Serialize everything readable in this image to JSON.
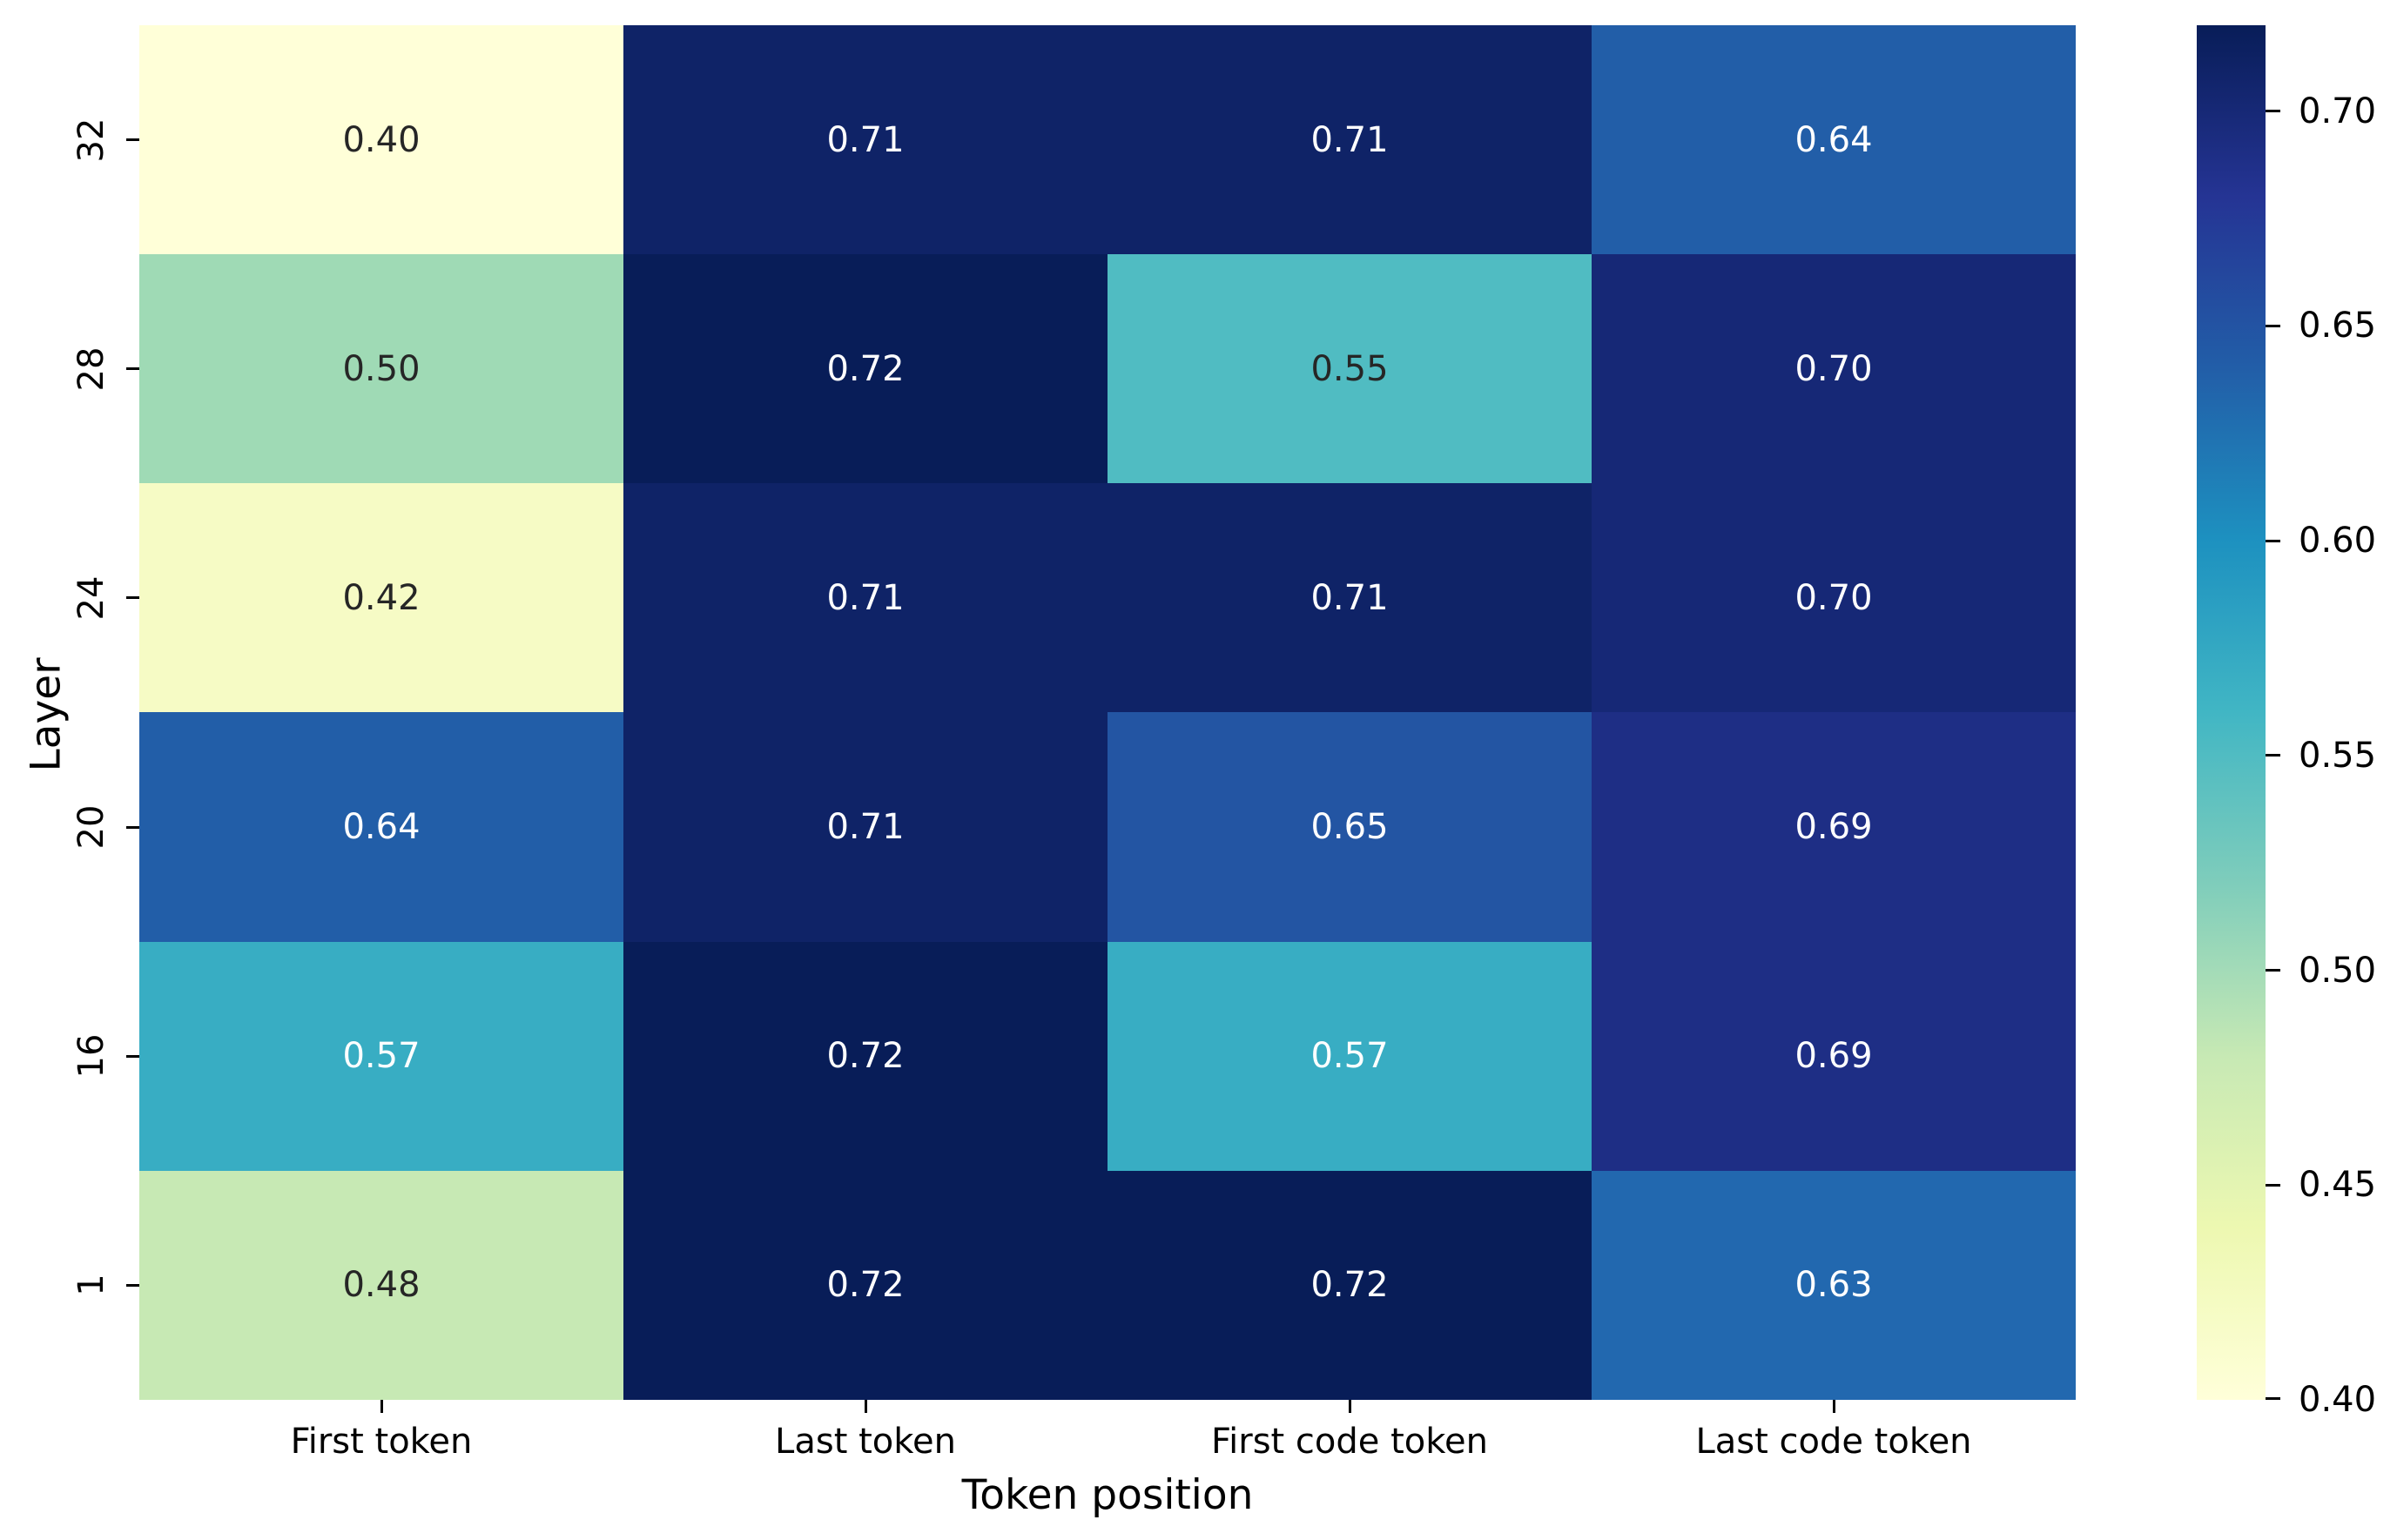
{
  "chart_data": {
    "type": "heatmap",
    "title": "",
    "xlabel": "Token position",
    "ylabel": "Layer",
    "columns": [
      "First token",
      "Last token",
      "First code token",
      "Last code token"
    ],
    "rows": [
      "32",
      "28",
      "24",
      "20",
      "16",
      "1"
    ],
    "values": [
      [
        0.4,
        0.71,
        0.71,
        0.64
      ],
      [
        0.5,
        0.72,
        0.55,
        0.7
      ],
      [
        0.42,
        0.71,
        0.71,
        0.7
      ],
      [
        0.64,
        0.71,
        0.65,
        0.69
      ],
      [
        0.57,
        0.72,
        0.57,
        0.69
      ],
      [
        0.48,
        0.72,
        0.72,
        0.63
      ]
    ],
    "value_labels": [
      [
        "0.40",
        "0.71",
        "0.71",
        "0.64"
      ],
      [
        "0.50",
        "0.72",
        "0.55",
        "0.70"
      ],
      [
        "0.42",
        "0.71",
        "0.71",
        "0.70"
      ],
      [
        "0.64",
        "0.71",
        "0.65",
        "0.69"
      ],
      [
        "0.57",
        "0.72",
        "0.57",
        "0.69"
      ],
      [
        "0.48",
        "0.72",
        "0.72",
        "0.63"
      ]
    ],
    "cell_colors": [
      [
        "#ffffd8",
        "#0f2367",
        "#0f2367",
        "#225ea8"
      ],
      [
        "#9fdab5",
        "#081d58",
        "#50bcc2",
        "#162876"
      ],
      [
        "#f6fbc5",
        "#0f2367",
        "#0f2367",
        "#162876"
      ],
      [
        "#225ea8",
        "#0f2367",
        "#2355a3",
        "#1e2e85"
      ],
      [
        "#38adc3",
        "#081d58",
        "#38adc3",
        "#1e2e85"
      ],
      [
        "#c7e9b4",
        "#081d58",
        "#081d58",
        "#2268af"
      ]
    ],
    "cell_text_colors": [
      [
        "#262626",
        "#ffffff",
        "#ffffff",
        "#ffffff"
      ],
      [
        "#262626",
        "#ffffff",
        "#262626",
        "#ffffff"
      ],
      [
        "#262626",
        "#ffffff",
        "#ffffff",
        "#ffffff"
      ],
      [
        "#ffffff",
        "#ffffff",
        "#ffffff",
        "#ffffff"
      ],
      [
        "#ffffff",
        "#ffffff",
        "#ffffff",
        "#ffffff"
      ],
      [
        "#262626",
        "#ffffff",
        "#ffffff",
        "#ffffff"
      ]
    ],
    "colormap": "YlGnBu",
    "vmin": 0.4,
    "vmax": 0.72,
    "colorbar_ticks": [
      "0.70",
      "0.65",
      "0.60",
      "0.55",
      "0.50",
      "0.45",
      "0.40"
    ],
    "colorbar_gradient_top_to_bottom": [
      "#081d58",
      "#253494",
      "#225ea8",
      "#1d91c0",
      "#41b6c4",
      "#7fcdbb",
      "#c7e9b4",
      "#edf8b1",
      "#ffffd9"
    ],
    "legend_position": "right",
    "grid": false
  }
}
